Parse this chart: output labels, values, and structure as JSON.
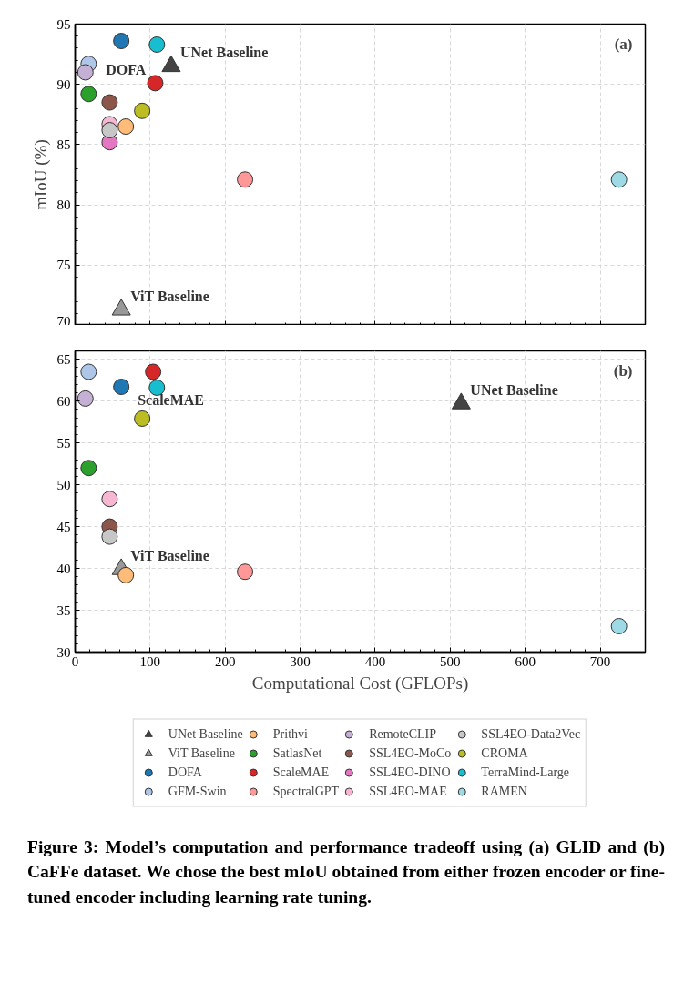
{
  "chart_data": [
    {
      "type": "scatter",
      "ylabel": "mIoU (%)",
      "xlim": [
        0,
        760
      ],
      "ylim": [
        70,
        95
      ],
      "xticks": [
        0,
        100,
        200,
        300,
        400,
        500,
        600,
        700
      ],
      "yticks": [
        70,
        75,
        80,
        85,
        90,
        95
      ],
      "tick_labels": "y",
      "grid": true,
      "marker": "circle",
      "annotations": [
        "(a)",
        {
          "text": "DOFA",
          "x": 61.5,
          "y": 93.6
        },
        {
          "text": "UNet Baseline",
          "x": 128,
          "y": 91.5
        },
        {
          "text": "ViT Baseline",
          "x": 61.5,
          "y": 71.3
        }
      ],
      "series": [
        {
          "color": "#444444",
          "marker": "triangle",
          "x": [
            128
          ],
          "values": [
            91.5
          ]
        },
        {
          "color": "#999999",
          "marker": "triangle",
          "x": [
            61.5
          ],
          "values": [
            71.3
          ]
        },
        {
          "color": "#1f77b4",
          "x": [
            61.5
          ],
          "values": [
            93.6
          ]
        },
        {
          "color": "#aec7e8",
          "x": [
            18
          ],
          "values": [
            91.7
          ]
        },
        {
          "color": "#ffbb78",
          "x": [
            67.6
          ],
          "values": [
            86.5
          ]
        },
        {
          "color": "#2ca02c",
          "x": [
            18
          ],
          "values": [
            89.2
          ]
        },
        {
          "color": "#d62728",
          "x": [
            106.8
          ],
          "values": [
            90.1
          ]
        },
        {
          "color": "#ff9896",
          "x": [
            226.5
          ],
          "values": [
            82.1
          ]
        },
        {
          "color": "#c5b0d5",
          "x": [
            13.7
          ],
          "values": [
            91.0
          ]
        },
        {
          "color": "#8c564b",
          "x": [
            46
          ],
          "values": [
            88.5
          ]
        },
        {
          "color": "#e377c2",
          "x": [
            46
          ],
          "values": [
            85.2
          ]
        },
        {
          "color": "#f7b6d2",
          "x": [
            46
          ],
          "values": [
            86.7
          ]
        },
        {
          "color": "#c7c7c7",
          "x": [
            46
          ],
          "values": [
            86.2
          ]
        },
        {
          "color": "#bcbd22",
          "x": [
            89.4
          ],
          "values": [
            87.8
          ]
        },
        {
          "color": "#17becf",
          "x": [
            109
          ],
          "values": [
            93.3
          ]
        },
        {
          "color": "#9edae5",
          "x": [
            725
          ],
          "values": [
            82.1
          ]
        }
      ]
    },
    {
      "type": "scatter",
      "xlabel": "Computational Cost (GFLOPs)",
      "xlim": [
        0,
        760
      ],
      "ylim": [
        30,
        66
      ],
      "xticks": [
        0,
        100,
        200,
        300,
        400,
        500,
        600,
        700
      ],
      "yticks": [
        30,
        35,
        40,
        45,
        50,
        55,
        60,
        65
      ],
      "grid": true,
      "legend": "bottom",
      "marker": "circle",
      "annotations": [
        "(b)",
        {
          "text": "ScaleMAE",
          "x": 104,
          "y": 63.5
        },
        {
          "text": "UNet Baseline",
          "x": 514.6,
          "y": 59.7
        },
        {
          "text": "ViT Baseline",
          "x": 61.5,
          "y": 39.9
        },
        "Figure 3: Model’s computation and performance tradeoff using (a) GLID and (b) CaFFe dataset. We chose the best mIoU obtained from either frozen encoder or fine-tuned encoder including learning rate tuning."
      ],
      "series": [
        {
          "name": "UNet Baseline",
          "color": "#444444",
          "marker": "triangle",
          "x": [
            514.6
          ],
          "values": [
            59.7
          ]
        },
        {
          "name": "ViT Baseline",
          "color": "#999999",
          "marker": "triangle",
          "x": [
            61.5
          ],
          "values": [
            39.9
          ]
        },
        {
          "name": "DOFA",
          "color": "#1f77b4",
          "x": [
            61.5
          ],
          "values": [
            61.7
          ]
        },
        {
          "name": "GFM-Swin",
          "color": "#aec7e8",
          "x": [
            18
          ],
          "values": [
            63.5
          ]
        },
        {
          "name": "Prithvi",
          "color": "#ffbb78",
          "x": [
            67.6
          ],
          "values": [
            39.2
          ]
        },
        {
          "name": "SatlasNet",
          "color": "#2ca02c",
          "x": [
            18
          ],
          "values": [
            52.0
          ]
        },
        {
          "name": "ScaleMAE",
          "color": "#d62728",
          "x": [
            104
          ],
          "values": [
            63.5
          ]
        },
        {
          "name": "SpectralGPT",
          "color": "#ff9896",
          "x": [
            226.5
          ],
          "values": [
            39.6
          ]
        },
        {
          "name": "RemoteCLIP",
          "color": "#c5b0d5",
          "x": [
            13.7
          ],
          "values": [
            60.3
          ]
        },
        {
          "name": "SSL4EO-MoCo",
          "color": "#8c564b",
          "x": [
            46
          ],
          "values": [
            45.0
          ]
        },
        {
          "name": "SSL4EO-DINO",
          "color": "#e377c2",
          "x": [
            null
          ],
          "values": [
            null
          ]
        },
        {
          "name": "SSL4EO-MAE",
          "color": "#f7b6d2",
          "x": [
            46
          ],
          "values": [
            48.3
          ]
        },
        {
          "name": "SSL4EO-Data2Vec",
          "color": "#c7c7c7",
          "x": [
            46
          ],
          "values": [
            43.8
          ]
        },
        {
          "name": "CROMA",
          "color": "#bcbd22",
          "x": [
            89.4
          ],
          "values": [
            57.9
          ]
        },
        {
          "name": "TerraMind-Large",
          "color": "#17becf",
          "x": [
            109
          ],
          "values": [
            61.6
          ]
        },
        {
          "name": "RAMEN",
          "color": "#9edae5",
          "x": [
            725
          ],
          "values": [
            33.1
          ]
        }
      ]
    }
  ]
}
